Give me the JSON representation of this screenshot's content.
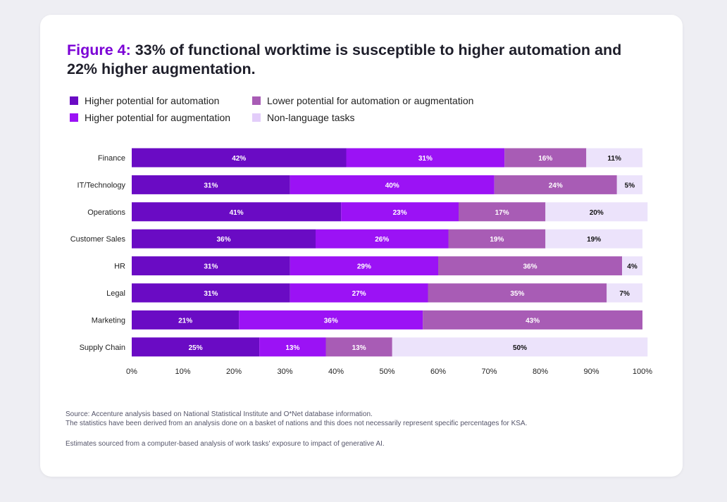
{
  "figure": {
    "label": "Figure 4:",
    "title": "33% of functional worktime is susceptible to higher automation and 22% higher augmentation."
  },
  "legend": {
    "items": [
      {
        "label": "Higher potential for automation",
        "color": "#6a0bc4"
      },
      {
        "label": "Higher potential for augmentation",
        "color": "#9b12f5"
      },
      {
        "label": "Lower potential for automation or augmentation",
        "color": "#a85cb5"
      },
      {
        "label": "Non-language tasks",
        "color": "#ece3fb"
      }
    ]
  },
  "chart_data": {
    "type": "bar",
    "orientation": "horizontal",
    "stacked": true,
    "categories": [
      "Finance",
      "IT/Technology",
      "Operations",
      "Customer Sales",
      "HR",
      "Legal",
      "Marketing",
      "Supply Chain"
    ],
    "series": [
      {
        "name": "Higher potential for automation",
        "values": [
          42,
          31,
          41,
          36,
          31,
          31,
          21,
          25
        ],
        "color": "#6a0bc4"
      },
      {
        "name": "Higher potential for augmentation",
        "values": [
          31,
          40,
          23,
          26,
          29,
          27,
          36,
          13
        ],
        "color": "#9b12f5"
      },
      {
        "name": "Lower potential for automation or augmentation",
        "values": [
          16,
          24,
          17,
          19,
          36,
          35,
          43,
          13
        ],
        "color": "#a85cb5"
      },
      {
        "name": "Non-language tasks",
        "values": [
          11,
          5,
          20,
          19,
          4,
          7,
          0,
          50
        ],
        "color": "#ece3fb"
      }
    ],
    "xlim": [
      0,
      100
    ],
    "x_ticks": [
      "0%",
      "10%",
      "20%",
      "30%",
      "40%",
      "50%",
      "60%",
      "70%",
      "80%",
      "90%",
      "100%"
    ],
    "value_suffix": "%",
    "grid": false,
    "legend_position": "top-left"
  },
  "footnotes": [
    "Source: Accenture analysis based on National Statistical Institute and O*Net database information.",
    "The statistics have been derived from an analysis done on a basket of nations and this does not necessarily represent specific percentages for KSA.",
    "Estimates sourced from a computer-based analysis of work tasks' exposure to impact of generative AI."
  ]
}
